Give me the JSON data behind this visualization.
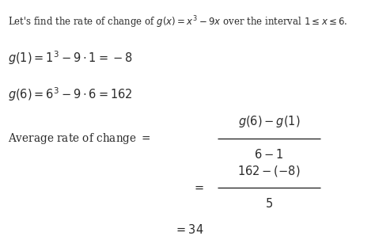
{
  "background_color": "#ffffff",
  "text_color": "#2b2b2b",
  "figsize": [
    4.74,
    3.17
  ],
  "dpi": 100,
  "font_size_intro": 8.5,
  "font_size_main": 10.5,
  "font_size_label": 9.8,
  "line1": "Let's find the rate of change of $g(x) = x^3 - 9x$ over the interval $1 \\leq x \\leq 6$.",
  "line2": "$g(1) = 1^3 - 9 \\cdot 1 = -8$",
  "line3": "$g(6) = 6^3 - 9 \\cdot 6 = 162$",
  "arc_label": "Average rate of change $=$",
  "frac1_num": "$g(6) - g(1)$",
  "frac1_den": "$6 - 1$",
  "frac2_num": "$162 - (-8)$",
  "frac2_den": "$5$",
  "eq_sign": "$=$",
  "result": "$= 34$"
}
